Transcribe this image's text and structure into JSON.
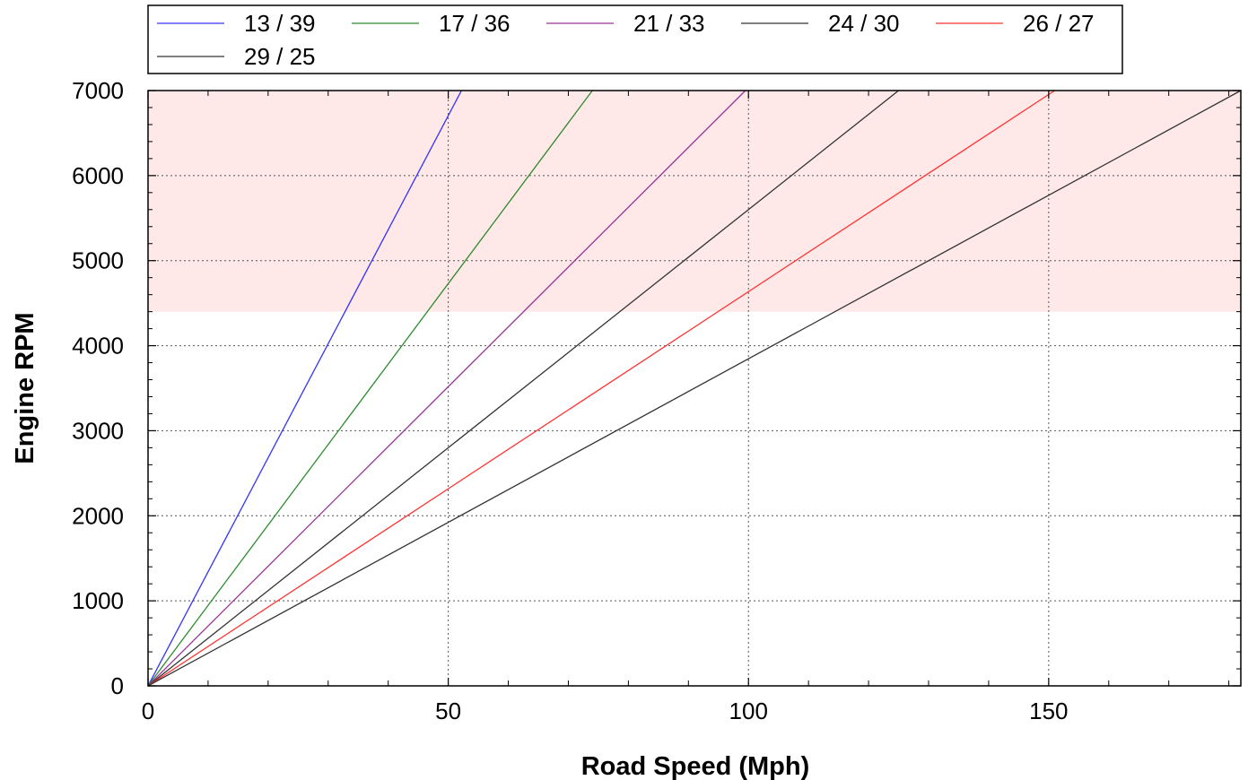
{
  "chart_data": {
    "type": "line",
    "xlabel": "Road Speed (Mph)",
    "ylabel": "Engine RPM",
    "xlim": [
      0,
      182
    ],
    "ylim": [
      0,
      7000
    ],
    "x_ticks": [
      0,
      50,
      100,
      150
    ],
    "x_tick_labels": [
      "0",
      "50",
      "100",
      "150"
    ],
    "y_ticks": [
      0,
      1000,
      2000,
      3000,
      4000,
      5000,
      6000,
      7000
    ],
    "y_tick_labels": [
      "0",
      "1000",
      "2000",
      "3000",
      "4000",
      "5000",
      "6000",
      "7000"
    ],
    "grid": true,
    "legend_position": "top",
    "shaded_band": {
      "y_from": 4400,
      "y_to": 7000,
      "color": "#ffe8e8"
    },
    "series": [
      {
        "name": "13 / 39",
        "color": "#3333ff",
        "x": [
          0,
          52.2
        ],
        "y": [
          0,
          7000
        ]
      },
      {
        "name": "17 / 36",
        "color": "#2e8b2e",
        "x": [
          0,
          74.0
        ],
        "y": [
          0,
          7000
        ]
      },
      {
        "name": "21 / 33",
        "color": "#993399",
        "x": [
          0,
          99.5
        ],
        "y": [
          0,
          7000
        ]
      },
      {
        "name": "24 / 30",
        "color": "#333333",
        "x": [
          0,
          125.0
        ],
        "y": [
          0,
          7000
        ]
      },
      {
        "name": "26 / 27",
        "color": "#ff3333",
        "x": [
          0,
          151.0
        ],
        "y": [
          0,
          7000
        ]
      },
      {
        "name": "29 / 25",
        "color": "#333333",
        "x": [
          0,
          182.0
        ],
        "y": [
          0,
          7000
        ]
      }
    ]
  }
}
